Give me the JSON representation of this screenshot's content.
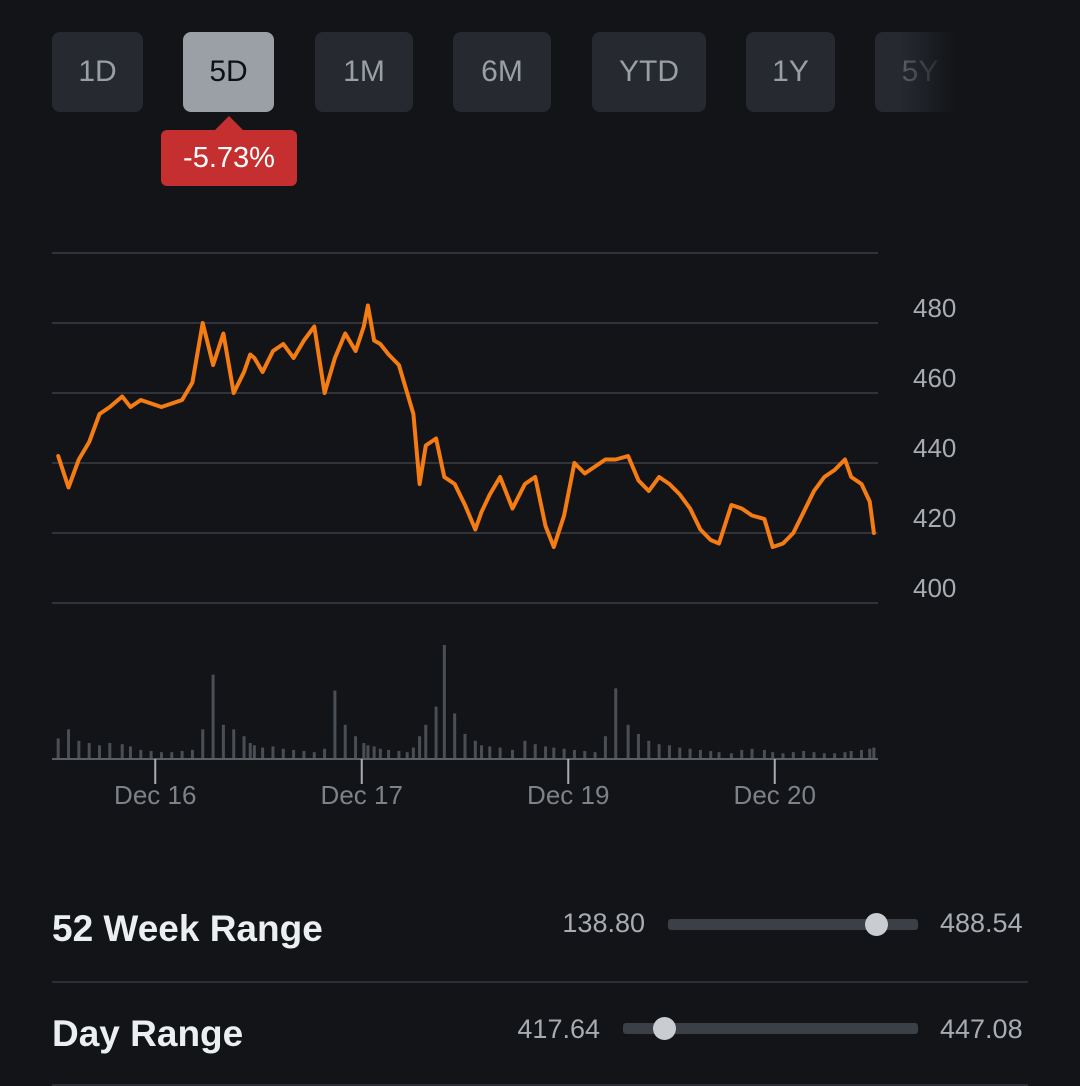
{
  "tabs": [
    {
      "label": "1D",
      "active": false
    },
    {
      "label": "5D",
      "active": true
    },
    {
      "label": "1M",
      "active": false
    },
    {
      "label": "6M",
      "active": false
    },
    {
      "label": "YTD",
      "active": false
    },
    {
      "label": "1Y",
      "active": false
    },
    {
      "label": "5Y",
      "active": false
    }
  ],
  "change_badge": {
    "text": "-5.73%",
    "color": "#c62f2f"
  },
  "chart_data": {
    "type": "line",
    "title": "",
    "xlabel": "",
    "ylabel": "",
    "y_ticks": [
      "480",
      "460",
      "440",
      "420",
      "400"
    ],
    "ylim": [
      400,
      500
    ],
    "x_ticks": [
      {
        "label": "Dec 16",
        "x": 1.0
      },
      {
        "label": "Dec 17",
        "x": 2.0
      },
      {
        "label": "Dec 19",
        "x": 3.0
      },
      {
        "label": "Dec 20",
        "x": 4.0
      }
    ],
    "xlim": [
      0.5,
      4.5
    ],
    "grid": true,
    "line_color": "#f57c12",
    "series": [
      {
        "x": [
          0.53,
          0.58,
          0.63,
          0.68,
          0.73,
          0.78,
          0.84,
          0.88,
          0.93,
          0.98,
          1.03,
          1.08,
          1.13,
          1.18,
          1.23,
          1.28,
          1.33,
          1.38,
          1.43,
          1.46,
          1.48,
          1.52,
          1.57,
          1.62,
          1.67,
          1.72,
          1.77,
          1.82,
          1.87,
          1.92,
          1.97,
          2.01,
          2.03,
          2.06,
          2.09,
          2.13,
          2.18,
          2.22,
          2.25,
          2.28,
          2.31,
          2.36,
          2.4,
          2.45,
          2.5,
          2.55,
          2.58,
          2.62,
          2.67,
          2.73,
          2.79,
          2.84,
          2.89,
          2.93,
          2.98,
          3.03,
          3.08,
          3.13,
          3.18,
          3.23,
          3.29,
          3.34,
          3.39,
          3.44,
          3.49,
          3.54,
          3.59,
          3.64,
          3.69,
          3.73,
          3.79,
          3.84,
          3.89,
          3.95,
          3.99,
          4.04,
          4.09,
          4.14,
          4.19,
          4.24,
          4.29,
          4.34,
          4.37,
          4.42,
          4.46,
          4.48
        ],
        "y": [
          442,
          433,
          441,
          446,
          454,
          456,
          459,
          456,
          458,
          457,
          456,
          457,
          458,
          463,
          480,
          468,
          477,
          460,
          466,
          471,
          470,
          466,
          472,
          474,
          470,
          475,
          479,
          460,
          470,
          477,
          472,
          479,
          485,
          475,
          474,
          471,
          468,
          460,
          454,
          434,
          445,
          447,
          436,
          434,
          428,
          421,
          426,
          431,
          436,
          427,
          434,
          436,
          422,
          416,
          425,
          440,
          437,
          439,
          441,
          441,
          442,
          435,
          432,
          436,
          434,
          431,
          427,
          421,
          418,
          417,
          428,
          427,
          425,
          424,
          416,
          417,
          420,
          426,
          432,
          436,
          438,
          441,
          436,
          434,
          429,
          420
        ]
      }
    ],
    "volume": {
      "color": "#4a4e55",
      "x": [
        0.53,
        0.58,
        0.63,
        0.68,
        0.73,
        0.78,
        0.84,
        0.88,
        0.93,
        0.98,
        1.03,
        1.08,
        1.13,
        1.18,
        1.23,
        1.28,
        1.33,
        1.38,
        1.43,
        1.46,
        1.48,
        1.52,
        1.57,
        1.62,
        1.67,
        1.72,
        1.77,
        1.82,
        1.87,
        1.92,
        1.97,
        2.01,
        2.03,
        2.06,
        2.09,
        2.13,
        2.18,
        2.22,
        2.25,
        2.28,
        2.31,
        2.36,
        2.4,
        2.45,
        2.5,
        2.55,
        2.58,
        2.62,
        2.67,
        2.73,
        2.79,
        2.84,
        2.89,
        2.93,
        2.98,
        3.03,
        3.08,
        3.13,
        3.18,
        3.23,
        3.29,
        3.34,
        3.39,
        3.44,
        3.49,
        3.54,
        3.59,
        3.64,
        3.69,
        3.73,
        3.79,
        3.84,
        3.89,
        3.95,
        3.99,
        4.04,
        4.09,
        4.14,
        4.19,
        4.24,
        4.29,
        4.34,
        4.37,
        4.42,
        4.46,
        4.48
      ],
      "values": [
        18,
        26,
        16,
        14,
        12,
        14,
        13,
        11,
        8,
        7,
        6,
        6,
        7,
        8,
        26,
        74,
        30,
        26,
        20,
        14,
        12,
        10,
        11,
        9,
        8,
        7,
        6,
        9,
        60,
        30,
        20,
        14,
        12,
        11,
        9,
        8,
        7,
        6,
        10,
        20,
        30,
        46,
        100,
        40,
        22,
        16,
        12,
        11,
        10,
        8,
        16,
        13,
        11,
        10,
        9,
        8,
        7,
        6,
        20,
        62,
        30,
        22,
        16,
        13,
        12,
        10,
        9,
        8,
        7,
        6,
        5,
        8,
        9,
        8,
        6,
        5,
        6,
        7,
        6,
        5,
        5,
        6,
        7,
        8,
        9,
        10
      ]
    }
  },
  "stats": [
    {
      "title": "52 Week Range",
      "low": "138.80",
      "high": "488.54",
      "position": 0.83
    },
    {
      "title": "Day Range",
      "low": "417.64",
      "high": "447.08",
      "position": 0.14
    }
  ]
}
